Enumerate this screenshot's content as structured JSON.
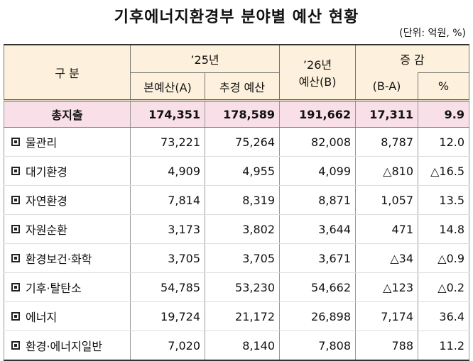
{
  "title": "기후에너지환경부 분야별 예산 현황",
  "unit": "(단위: 억원, %)",
  "table": {
    "header": {
      "category": "구 분",
      "y25": "’25년",
      "y25_main": "본예산(A)",
      "y25_supp": "추경 예산",
      "y26": "’26년",
      "y26_sub": "예산(B)",
      "change": "증 감",
      "change_sub": "(B-A)",
      "pct": "%"
    },
    "rows": [
      [
        "총지출",
        "174,351",
        "178,589",
        "191,662",
        "17,311",
        "9.9"
      ],
      [
        "물관리",
        "73,221",
        "75,264",
        "82,008",
        "8,787",
        "12.0"
      ],
      [
        "대기환경",
        "4,909",
        "4,955",
        "4,099",
        "△810",
        "△16.5"
      ],
      [
        "자연환경",
        "7,814",
        "8,319",
        "8,871",
        "1,057",
        "13.5"
      ],
      [
        "자원순환",
        "3,173",
        "3,802",
        "3,644",
        "471",
        "14.8"
      ],
      [
        "환경보건·화학",
        "3,705",
        "3,705",
        "3,671",
        "△34",
        "△0.9"
      ],
      [
        "기후·탈탄소",
        "54,785",
        "53,230",
        "54,662",
        "△123",
        "△0.2"
      ],
      [
        "에너지",
        "19,724",
        "21,172",
        "26,898",
        "7,174",
        "36.4"
      ],
      [
        "환경·에너지일반",
        "7,020",
        "8,140",
        "7,808",
        "788",
        "11.2"
      ]
    ]
  }
}
